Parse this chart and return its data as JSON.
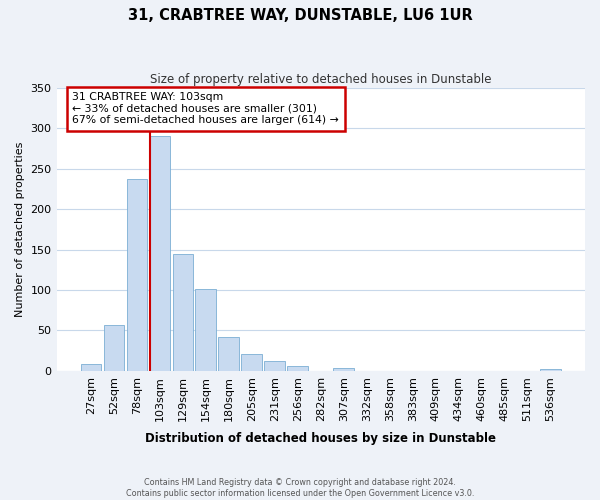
{
  "title": "31, CRABTREE WAY, DUNSTABLE, LU6 1UR",
  "subtitle": "Size of property relative to detached houses in Dunstable",
  "xlabel": "Distribution of detached houses by size in Dunstable",
  "ylabel": "Number of detached properties",
  "bar_labels": [
    "27sqm",
    "52sqm",
    "78sqm",
    "103sqm",
    "129sqm",
    "154sqm",
    "180sqm",
    "205sqm",
    "231sqm",
    "256sqm",
    "282sqm",
    "307sqm",
    "332sqm",
    "358sqm",
    "383sqm",
    "409sqm",
    "434sqm",
    "460sqm",
    "485sqm",
    "511sqm",
    "536sqm"
  ],
  "bar_heights": [
    8,
    57,
    238,
    291,
    145,
    101,
    42,
    21,
    12,
    6,
    0,
    3,
    0,
    0,
    0,
    0,
    0,
    0,
    0,
    0,
    2
  ],
  "bar_color": "#c8daf0",
  "bar_edge_color": "#7bafd4",
  "vline_x_index": 3,
  "vline_color": "#cc0000",
  "ylim": [
    0,
    350
  ],
  "yticks": [
    0,
    50,
    100,
    150,
    200,
    250,
    300,
    350
  ],
  "annotation_text": "31 CRABTREE WAY: 103sqm\n← 33% of detached houses are smaller (301)\n67% of semi-detached houses are larger (614) →",
  "annotation_box_color": "#ffffff",
  "annotation_box_edge": "#cc0000",
  "footer_line1": "Contains HM Land Registry data © Crown copyright and database right 2024.",
  "footer_line2": "Contains public sector information licensed under the Open Government Licence v3.0.",
  "background_color": "#eef2f8",
  "plot_background_color": "#ffffff",
  "grid_color": "#c8d8ea"
}
